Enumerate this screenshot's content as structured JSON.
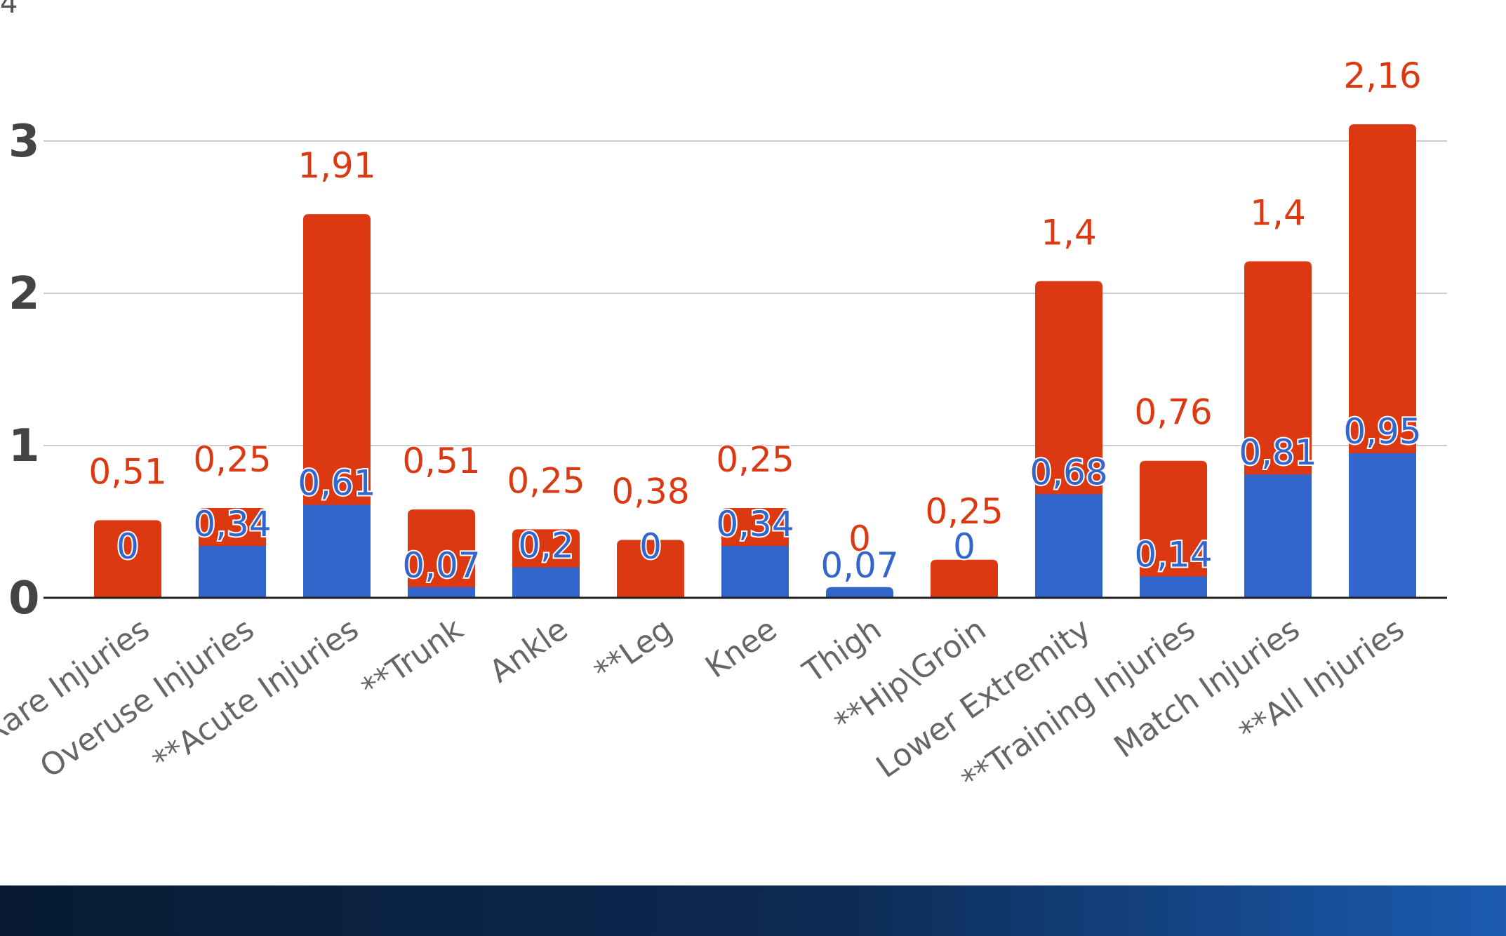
{
  "chart_data": {
    "type": "bar",
    "stacked": true,
    "title": "",
    "xlabel": "",
    "ylabel": "",
    "ylim": [
      0,
      3.35
    ],
    "yticks": [
      "0",
      "1",
      "2",
      "3"
    ],
    "grid": true,
    "categories": [
      "Rare Injuries",
      "Overuse Injuries",
      "**Acute Injuries",
      "**Trunk",
      "Ankle",
      "**Leg",
      "Knee",
      "Thigh",
      "**Hip\\Groin",
      "Lower Extremity",
      "**Training Injuries",
      "Match Injuries",
      "**All Injuries"
    ],
    "series": [
      {
        "color": "#3366cc",
        "values": [
          0,
          0.34,
          0.61,
          0.07,
          0.2,
          0,
          0.34,
          0.07,
          0,
          0.68,
          0.14,
          0.81,
          0.95
        ],
        "labels": [
          "0",
          "0,34",
          "0,61",
          "0,07",
          "0,2",
          "0",
          "0,34",
          "0,07",
          "0",
          "0,68",
          "0,14",
          "0,81",
          "0,95"
        ]
      },
      {
        "color": "#dc3912",
        "values": [
          0.51,
          0.25,
          1.91,
          0.51,
          0.25,
          0.38,
          0.25,
          0,
          0.25,
          1.4,
          0.76,
          1.4,
          2.16
        ],
        "labels": [
          "0,51",
          "0,25",
          "1,91",
          "0,51",
          "0,25",
          "0,38",
          "0,25",
          "0",
          "0,25",
          "1,4",
          "0,76",
          "1,4",
          "2,16"
        ]
      }
    ]
  },
  "colors": {
    "blue_series": "#3366cc",
    "red_series": "#dc3912",
    "footer_band": "#0c2a52"
  },
  "corner_glyph": "4"
}
